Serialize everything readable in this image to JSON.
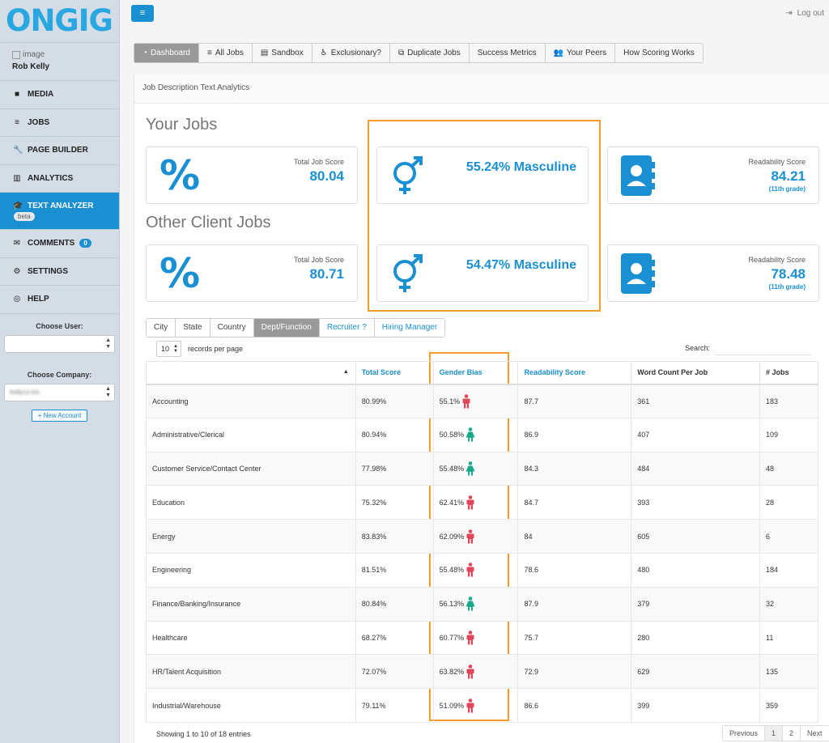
{
  "sidebar": {
    "logo": "ONGIG",
    "user_image_alt": "image",
    "user_name": "Rob Kelly",
    "nav": [
      {
        "label": "MEDIA",
        "icon": "video-icon",
        "glyph": "■"
      },
      {
        "label": "JOBS",
        "icon": "list-icon",
        "glyph": "≡"
      },
      {
        "label": "PAGE BUILDER",
        "icon": "wrench-icon",
        "glyph": "🔧"
      },
      {
        "label": "ANALYTICS",
        "icon": "bar-chart-icon",
        "glyph": "▥"
      }
    ],
    "active": {
      "label": "TEXT ANALYZER",
      "badge": "beta",
      "icon": "graduation-cap-icon",
      "glyph": "🎓"
    },
    "nav2": [
      {
        "label": "COMMENTS",
        "icon": "envelope-icon",
        "glyph": "✉",
        "count": "0"
      },
      {
        "label": "SETTINGS",
        "icon": "gear-icon",
        "glyph": "⚙"
      },
      {
        "label": "HELP",
        "icon": "life-ring-icon",
        "glyph": "◎"
      }
    ],
    "choose_user_label": "Choose User:",
    "choose_user_value": "",
    "choose_company_label": "Choose Company:",
    "choose_company_value": "kellyco-inc",
    "new_account_label": "+ New Account"
  },
  "topbar": {
    "menu_glyph": "≡",
    "logout_label": "Log out"
  },
  "tabs": [
    {
      "label": "Dashboard",
      "glyph": "◔",
      "icon": "dashboard-icon",
      "active": true
    },
    {
      "label": "All Jobs",
      "glyph": "≡",
      "icon": "list-icon"
    },
    {
      "label": "Sandbox",
      "glyph": "▤",
      "icon": "keyboard-icon"
    },
    {
      "label": "Exclusionary?",
      "glyph": "♿",
      "icon": "wheelchair-icon"
    },
    {
      "label": "Duplicate Jobs",
      "glyph": "⧉",
      "icon": "copy-icon"
    },
    {
      "label": "Success Metrics",
      "glyph": "",
      "icon": ""
    },
    {
      "label": "Your Peers",
      "glyph": "👥",
      "icon": "users-icon"
    },
    {
      "label": "How Scoring Works",
      "glyph": "",
      "icon": ""
    }
  ],
  "panel_title": "Job Description Text Analytics",
  "your_jobs": {
    "title": "Your Jobs",
    "total_label": "Total Job Score",
    "total_value": "80.04",
    "gender_text": "55.24% Masculine",
    "readability_label": "Readability Score",
    "readability_value": "84.21",
    "readability_grade": "(11th grade)"
  },
  "other_jobs": {
    "title": "Other Client Jobs",
    "total_label": "Total Job Score",
    "total_value": "80.71",
    "gender_text": "54.47% Masculine",
    "readability_label": "Readability Score",
    "readability_value": "78.48",
    "readability_grade": "(11th grade)"
  },
  "percent_glyph": "%",
  "filter_tabs": [
    "City",
    "State",
    "Country",
    "Dept/Function",
    "Recruiter ?",
    "Hiring Manager"
  ],
  "records": {
    "value": "10",
    "label": "records per page"
  },
  "search_label": "Search:",
  "table": {
    "headers": [
      "",
      "Total Score",
      "Gender Bias",
      "Readability Score",
      "Word Count Per Job",
      "# Jobs"
    ],
    "rows": [
      {
        "dept": "Accounting",
        "total": "80.99%",
        "gender": "55.1%",
        "bias": "male",
        "read": "87.7",
        "words": "361",
        "jobs": "183"
      },
      {
        "dept": "Administrative/Clerical",
        "total": "80.94%",
        "gender": "50.58%",
        "bias": "female",
        "read": "86.9",
        "words": "407",
        "jobs": "109"
      },
      {
        "dept": "Customer Service/Contact Center",
        "total": "77.98%",
        "gender": "55.48%",
        "bias": "female",
        "read": "84.3",
        "words": "484",
        "jobs": "48"
      },
      {
        "dept": "Education",
        "total": "75.32%",
        "gender": "62.41%",
        "bias": "male",
        "read": "84.7",
        "words": "393",
        "jobs": "28"
      },
      {
        "dept": "Energy",
        "total": "83.83%",
        "gender": "62.09%",
        "bias": "male",
        "read": "84",
        "words": "605",
        "jobs": "6"
      },
      {
        "dept": "Engineering",
        "total": "81.51%",
        "gender": "55.48%",
        "bias": "male",
        "read": "78.6",
        "words": "480",
        "jobs": "184"
      },
      {
        "dept": "Finance/Banking/Insurance",
        "total": "80.84%",
        "gender": "56.13%",
        "bias": "female",
        "read": "87.9",
        "words": "379",
        "jobs": "32"
      },
      {
        "dept": "Healthcare",
        "total": "68.27%",
        "gender": "60.77%",
        "bias": "male",
        "read": "75.7",
        "words": "280",
        "jobs": "11"
      },
      {
        "dept": "HR/Talent Acquisition",
        "total": "72.07%",
        "gender": "63.82%",
        "bias": "male",
        "read": "72.9",
        "words": "629",
        "jobs": "135"
      },
      {
        "dept": "Industrial/Warehouse",
        "total": "79.11%",
        "gender": "51.09%",
        "bias": "male",
        "read": "86.6",
        "words": "399",
        "jobs": "359"
      }
    ]
  },
  "footer": {
    "showing": "Showing 1 to 10 of 18 entries"
  },
  "pager": [
    "Previous",
    "1",
    "2",
    "Next"
  ],
  "colors": {
    "accent": "#1a8fd2",
    "male": "#e0475a",
    "female": "#1aa88a",
    "highlight": "#f39c2c"
  }
}
